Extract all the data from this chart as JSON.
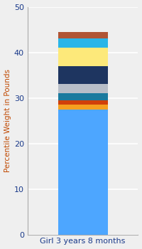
{
  "category": "Girl 3 years 8 months",
  "segments": [
    {
      "value": 27.5,
      "color": "#4da6ff"
    },
    {
      "value": 1.0,
      "color": "#f5a020"
    },
    {
      "value": 1.0,
      "color": "#d0400a"
    },
    {
      "value": 1.5,
      "color": "#1a7a9e"
    },
    {
      "value": 2.0,
      "color": "#b8bec8"
    },
    {
      "value": 4.0,
      "color": "#1e3560"
    },
    {
      "value": 4.0,
      "color": "#fde97a"
    },
    {
      "value": 2.0,
      "color": "#29b5e8"
    },
    {
      "value": 1.5,
      "color": "#b05535"
    }
  ],
  "ylabel": "Percentile Weight in Pounds",
  "ylim": [
    0,
    50
  ],
  "yticks": [
    0,
    10,
    20,
    30,
    40,
    50
  ],
  "background_color": "#efefef",
  "bar_width": 0.45,
  "ylabel_fontsize": 7.5,
  "tick_fontsize": 8,
  "xlabel_fontsize": 8,
  "ylabel_color": "#c04800",
  "tick_color": "#1a3a8a",
  "grid_color": "#ffffff",
  "spine_color": "#aaaaaa"
}
